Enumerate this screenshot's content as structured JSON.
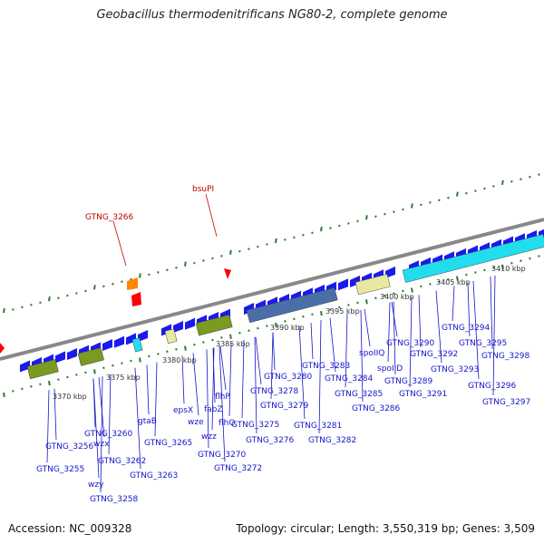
{
  "header": {
    "title": "Geobacillus thermodenitrificans NG80-2, complete genome"
  },
  "footer": {
    "accession": "Accession: NC_009328",
    "topology": "Topology: circular; Length: 3,550,319 bp; Genes: 3,509"
  },
  "colors": {
    "backbone": "#888888",
    "forward_gene": "#1a1aee",
    "label_blue": "#1515c8",
    "label_red": "#cc0000",
    "tick_green": "#2e7d32",
    "feature_cyan": "#22ddee",
    "feature_olive": "#7a9a22",
    "feature_steel": "#4a6fa8",
    "feature_khaki": "#e8e8a0"
  },
  "scale_ticks": [
    "3370 kbp",
    "3375 kbp",
    "3380 kbp",
    "3385 kbp",
    "3390 kbp",
    "3395 kbp",
    "3400 kbp",
    "3405 kbp",
    "3410 kbp"
  ],
  "site_labels": [
    "GTNG_3266",
    "bsuPI"
  ],
  "gene_labels": [
    "GTNG_3255",
    "GTNG_3256",
    "wzy",
    "GTNG_3258",
    "GTNG_3260",
    "wzx",
    "GTNG_3262",
    "gtaB",
    "GTNG_3263",
    "GTNG_3265",
    "epsX",
    "wze",
    "wzz",
    "fabZ",
    "flhP",
    "flhO",
    "GTNG_3270",
    "GTNG_3272",
    "GTNG_3275",
    "GTNG_3276",
    "GTNG_3278",
    "GTNG_3279",
    "GTNG_3280",
    "GTNG_3281",
    "GTNG_3282",
    "GTNG_3283",
    "GTNG_3284",
    "GTNG_3285",
    "GTNG_3286",
    "spoIIQ",
    "spoIID",
    "GTNG_3289",
    "GTNG_3290",
    "GTNG_3291",
    "GTNG_3292",
    "GTNG_3293",
    "GTNG_3294",
    "GTNG_3295",
    "GTNG_3296",
    "GTNG_3297",
    "GTNG_3298"
  ]
}
